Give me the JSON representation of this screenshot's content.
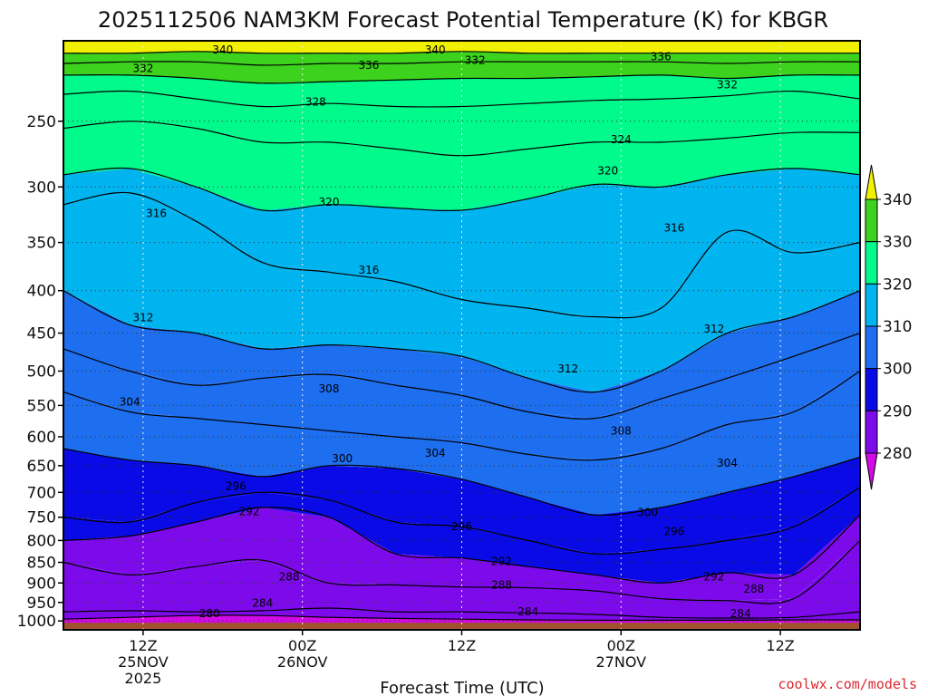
{
  "chart_data": {
    "type": "contour",
    "title": "2025112506 NAM3KM Forecast Potential Temperature (K) for KBGR",
    "xlabel": "Forecast Time (UTC)",
    "ylabel": "",
    "x_ticks": [
      {
        "hours": 6,
        "lines": [
          "12Z",
          "25NOV",
          "2025"
        ]
      },
      {
        "hours": 18,
        "lines": [
          "00Z",
          "26NOV"
        ]
      },
      {
        "hours": 30,
        "lines": [
          "12Z"
        ]
      },
      {
        "hours": 42,
        "lines": [
          "00Z",
          "27NOV"
        ]
      },
      {
        "hours": 54,
        "lines": [
          "12Z"
        ]
      }
    ],
    "xlim": [
      0,
      60
    ],
    "ylim": [
      1025,
      200
    ],
    "y_scale": "log",
    "y_ticks": [
      250,
      300,
      350,
      400,
      450,
      500,
      550,
      600,
      650,
      700,
      750,
      800,
      850,
      900,
      950,
      1000
    ],
    "grid": true,
    "colorbar": {
      "labels": [
        "340",
        "330",
        "320",
        "310",
        "300",
        "290",
        "280"
      ],
      "bins": [
        {
          "lo": 340,
          "hi": 350,
          "color": "#f0f000"
        },
        {
          "lo": 330,
          "hi": 340,
          "color": "#3cd21e"
        },
        {
          "lo": 320,
          "hi": 330,
          "color": "#00fa8c"
        },
        {
          "lo": 310,
          "hi": 320,
          "color": "#00b4f0"
        },
        {
          "lo": 300,
          "hi": 310,
          "color": "#1e6ef0"
        },
        {
          "lo": 290,
          "hi": 300,
          "color": "#0a0ae6"
        },
        {
          "lo": 280,
          "hi": 290,
          "color": "#7d0aeb"
        },
        {
          "lo": 270,
          "hi": 280,
          "color": "#d20ae6"
        }
      ]
    },
    "isentropes": [
      {
        "theta": 280,
        "pressure_hPa": [
          995,
          990,
          985,
          985,
          990,
          993,
          995,
          997,
          998,
          998,
          998,
          997,
          997
        ]
      },
      {
        "theta": 284,
        "pressure_hPa": [
          975,
          972,
          975,
          972,
          965,
          975,
          975,
          978,
          982,
          990,
          992,
          990,
          975
        ]
      },
      {
        "theta": 288,
        "pressure_hPa": [
          850,
          880,
          860,
          845,
          900,
          905,
          910,
          912,
          920,
          940,
          945,
          940,
          800
        ]
      },
      {
        "theta": 292,
        "pressure_hPa": [
          800,
          790,
          760,
          730,
          750,
          830,
          840,
          860,
          880,
          900,
          875,
          880,
          745
        ]
      },
      {
        "theta": 296,
        "pressure_hPa": [
          750,
          760,
          720,
          700,
          715,
          760,
          770,
          800,
          830,
          820,
          800,
          770,
          690
        ]
      },
      {
        "theta": 300,
        "pressure_hPa": [
          620,
          640,
          650,
          670,
          650,
          655,
          675,
          710,
          745,
          730,
          700,
          670,
          635
        ]
      },
      {
        "theta": 304,
        "pressure_hPa": [
          530,
          560,
          570,
          580,
          590,
          600,
          610,
          630,
          640,
          620,
          580,
          560,
          500
        ]
      },
      {
        "theta": 308,
        "pressure_hPa": [
          470,
          500,
          520,
          510,
          505,
          520,
          535,
          560,
          570,
          540,
          510,
          480,
          450
        ]
      },
      {
        "theta": 312,
        "pressure_hPa": [
          400,
          440,
          450,
          470,
          465,
          470,
          480,
          510,
          530,
          500,
          450,
          430,
          400
        ]
      },
      {
        "theta": 316,
        "pressure_hPa": [
          315,
          305,
          330,
          370,
          380,
          390,
          410,
          420,
          430,
          420,
          340,
          360,
          350
        ]
      },
      {
        "theta": 320,
        "pressure_hPa": [
          290,
          285,
          300,
          320,
          315,
          318,
          320,
          310,
          298,
          300,
          290,
          285,
          290
        ]
      },
      {
        "theta": 324,
        "pressure_hPa": [
          255,
          250,
          255,
          265,
          265,
          270,
          275,
          270,
          265,
          265,
          262,
          258,
          258
        ]
      },
      {
        "theta": 328,
        "pressure_hPa": [
          232,
          230,
          235,
          240,
          238,
          240,
          240,
          238,
          236,
          235,
          233,
          230,
          235
        ]
      },
      {
        "theta": 332,
        "pressure_hPa": [
          220,
          220,
          222,
          225,
          224,
          223,
          222,
          222,
          221,
          220,
          222,
          220,
          220
        ]
      },
      {
        "theta": 336,
        "pressure_hPa": [
          213,
          212,
          212,
          214,
          213,
          213,
          212,
          212,
          212,
          212,
          213,
          212,
          212
        ]
      },
      {
        "theta": 340,
        "pressure_hPa": [
          207,
          207,
          206,
          207,
          207,
          207,
          206,
          207,
          207,
          207,
          207,
          207,
          207
        ]
      }
    ],
    "isentrope_hours": [
      0,
      5,
      10,
      15,
      20,
      25,
      30,
      35,
      40,
      45,
      50,
      55,
      60
    ],
    "contour_labels": [
      {
        "text": "340",
        "hours": 12,
        "p": 205
      },
      {
        "text": "340",
        "hours": 28,
        "p": 205
      },
      {
        "text": "332",
        "hours": 6,
        "p": 216
      },
      {
        "text": "336",
        "hours": 23,
        "p": 214
      },
      {
        "text": "332",
        "hours": 31,
        "p": 211
      },
      {
        "text": "336",
        "hours": 45,
        "p": 209
      },
      {
        "text": "332",
        "hours": 50,
        "p": 226
      },
      {
        "text": "328",
        "hours": 19,
        "p": 237
      },
      {
        "text": "324",
        "hours": 42,
        "p": 263
      },
      {
        "text": "320",
        "hours": 41,
        "p": 287
      },
      {
        "text": "320",
        "hours": 20,
        "p": 313
      },
      {
        "text": "316",
        "hours": 7,
        "p": 323
      },
      {
        "text": "316",
        "hours": 46,
        "p": 336
      },
      {
        "text": "316",
        "hours": 23,
        "p": 378
      },
      {
        "text": "312",
        "hours": 6,
        "p": 431
      },
      {
        "text": "312",
        "hours": 49,
        "p": 445
      },
      {
        "text": "312",
        "hours": 38,
        "p": 497
      },
      {
        "text": "304",
        "hours": 5,
        "p": 545
      },
      {
        "text": "308",
        "hours": 20,
        "p": 525
      },
      {
        "text": "308",
        "hours": 42,
        "p": 590
      },
      {
        "text": "304",
        "hours": 28,
        "p": 628
      },
      {
        "text": "300",
        "hours": 21,
        "p": 637
      },
      {
        "text": "304",
        "hours": 50,
        "p": 645
      },
      {
        "text": "296",
        "hours": 13,
        "p": 688
      },
      {
        "text": "292",
        "hours": 14,
        "p": 738
      },
      {
        "text": "300",
        "hours": 44,
        "p": 740
      },
      {
        "text": "296",
        "hours": 30,
        "p": 770
      },
      {
        "text": "296",
        "hours": 46,
        "p": 780
      },
      {
        "text": "292",
        "hours": 33,
        "p": 848
      },
      {
        "text": "292",
        "hours": 49,
        "p": 885
      },
      {
        "text": "288",
        "hours": 17,
        "p": 885
      },
      {
        "text": "288",
        "hours": 33,
        "p": 905
      },
      {
        "text": "288",
        "hours": 52,
        "p": 915
      },
      {
        "text": "284",
        "hours": 15,
        "p": 952
      },
      {
        "text": "284",
        "hours": 35,
        "p": 975
      },
      {
        "text": "284",
        "hours": 51,
        "p": 980
      },
      {
        "text": "280",
        "hours": 11,
        "p": 980
      }
    ],
    "surface_color": "#a0522d"
  },
  "credit": "coolwx.com/models"
}
